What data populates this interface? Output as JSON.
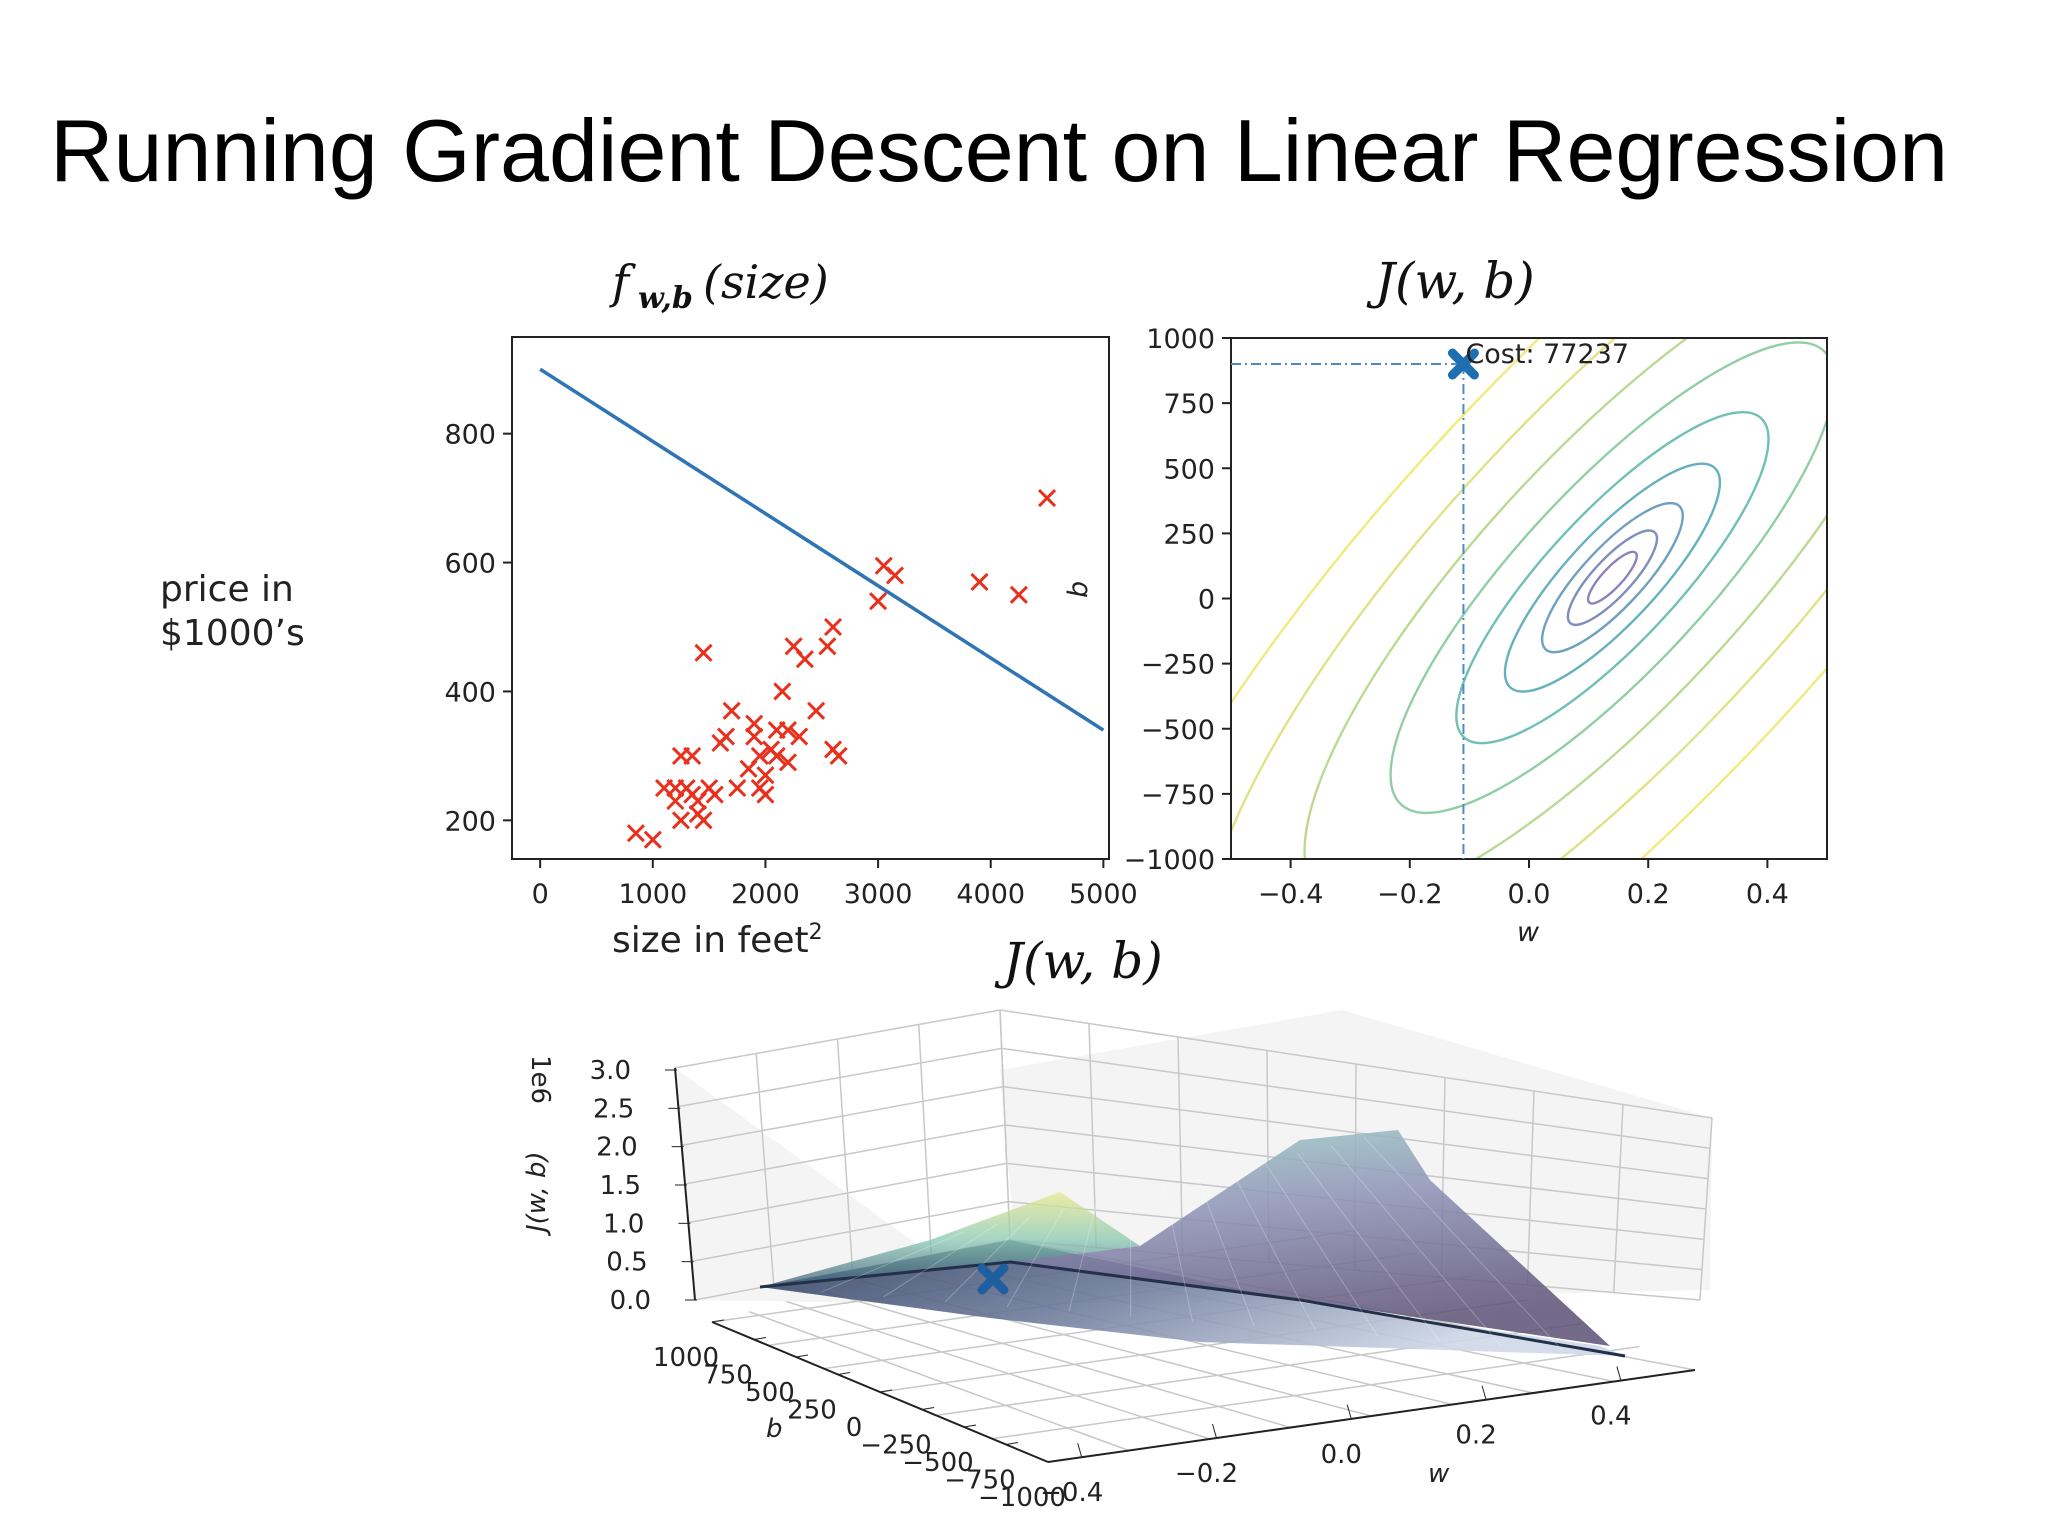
{
  "slide": {
    "title": "Running Gradient Descent on Linear Regression",
    "y_label_line1": "price in",
    "y_label_line2": "$1000’s",
    "x_label": "size in feet",
    "x_label_sup": "2"
  },
  "chart_data": [
    {
      "type": "scatter",
      "title_f": "f",
      "title_sub": "w,b",
      "title_arg": "(size)",
      "xlim": [
        -250,
        5050
      ],
      "ylim": [
        140,
        950
      ],
      "x_ticks": [
        "0",
        "1000",
        "2000",
        "3000",
        "4000",
        "5000"
      ],
      "x_tick_values": [
        0,
        1000,
        2000,
        3000,
        4000,
        5000
      ],
      "y_ticks": [
        "200",
        "400",
        "600",
        "800"
      ],
      "y_tick_values": [
        200,
        400,
        600,
        800
      ],
      "marker_color": "#e8301c",
      "line_color": "#2f74b5",
      "fit_line": {
        "x": [
          0,
          5000
        ],
        "y": [
          900,
          340
        ]
      },
      "points": [
        [
          850,
          180
        ],
        [
          1000,
          170
        ],
        [
          1100,
          250
        ],
        [
          1200,
          250
        ],
        [
          1200,
          230
        ],
        [
          1250,
          200
        ],
        [
          1250,
          300
        ],
        [
          1300,
          250
        ],
        [
          1350,
          240
        ],
        [
          1350,
          300
        ],
        [
          1400,
          210
        ],
        [
          1400,
          230
        ],
        [
          1450,
          200
        ],
        [
          1500,
          250
        ],
        [
          1550,
          240
        ],
        [
          1600,
          320
        ],
        [
          1650,
          330
        ],
        [
          1700,
          370
        ],
        [
          1750,
          250
        ],
        [
          1850,
          280
        ],
        [
          1900,
          330
        ],
        [
          1900,
          350
        ],
        [
          1950,
          250
        ],
        [
          1950,
          300
        ],
        [
          2000,
          240
        ],
        [
          2000,
          270
        ],
        [
          2050,
          310
        ],
        [
          2100,
          300
        ],
        [
          2100,
          340
        ],
        [
          2150,
          400
        ],
        [
          2200,
          290
        ],
        [
          2200,
          340
        ],
        [
          2250,
          470
        ],
        [
          2300,
          330
        ],
        [
          2350,
          450
        ],
        [
          2450,
          370
        ],
        [
          2550,
          470
        ],
        [
          2600,
          500
        ],
        [
          2600,
          310
        ],
        [
          2650,
          300
        ],
        [
          1450,
          460
        ],
        [
          3000,
          540
        ],
        [
          3050,
          595
        ],
        [
          3150,
          580
        ],
        [
          3900,
          570
        ],
        [
          4250,
          550
        ],
        [
          4500,
          700
        ]
      ]
    },
    {
      "type": "contour",
      "title": "J(w, b)",
      "xlabel": "w",
      "ylabel": "b",
      "xlim": [
        -0.5,
        0.5
      ],
      "ylim": [
        -1000,
        1000
      ],
      "x_ticks": [
        "−0.4",
        "−0.2",
        "0.0",
        "0.2",
        "0.4"
      ],
      "x_tick_values": [
        -0.4,
        -0.2,
        0.0,
        0.2,
        0.4
      ],
      "y_ticks": [
        "1000",
        "750",
        "500",
        "250",
        "0",
        "−250",
        "−500",
        "−750",
        "−1000"
      ],
      "y_tick_values": [
        1000,
        750,
        500,
        250,
        0,
        -250,
        -500,
        -750,
        -1000
      ],
      "minimum": [
        0.14,
        80
      ],
      "current_point": [
        -0.11,
        900
      ],
      "annotation": "Cost: 77237",
      "marker_color": "#1f6fb0",
      "contour_colors": [
        "#8e83b8",
        "#7f8fbd",
        "#6fa0bf",
        "#67b0bd",
        "#70c0b4",
        "#92cea5",
        "#bcd994",
        "#dfe386",
        "#f1ea7e"
      ]
    },
    {
      "type": "surface3d",
      "title": "J(w, b)",
      "zlabel": "J(w, b)",
      "z_scale_label": "1e6",
      "xlabel": "w",
      "ylabel": "b",
      "z_ticks": [
        "3.0",
        "2.5",
        "2.0",
        "1.5",
        "1.0",
        "0.5",
        "0.0"
      ],
      "w_ticks": [
        "−0.4",
        "−0.2",
        "0.0",
        "0.2",
        "0.4"
      ],
      "b_ticks": [
        "1000",
        "750",
        "500",
        "250",
        "0",
        "−250",
        "−500",
        "−750",
        "−1000"
      ],
      "current_point": [
        -0.11,
        900,
        0.077
      ]
    }
  ]
}
